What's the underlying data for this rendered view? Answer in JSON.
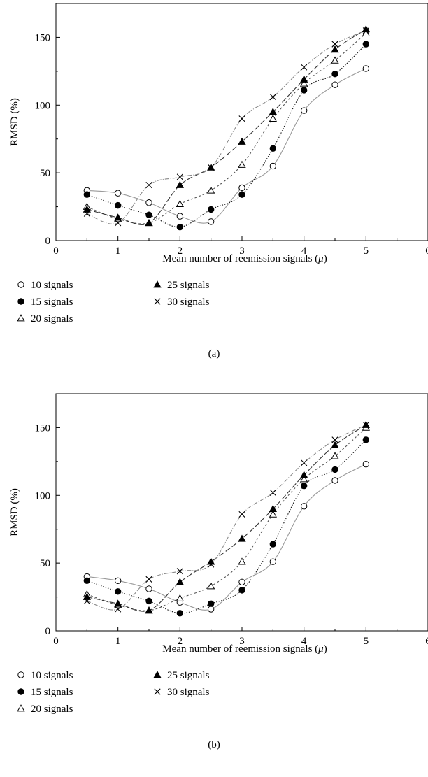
{
  "chart_data": [
    {
      "type": "scatter",
      "panel_label": "(a)",
      "xlabel": "Mean number of reemission signals (",
      "xlabel_symbol": "μ",
      "xlabel_suffix": ")",
      "ylabel": "RMSD (%)",
      "xlim": [
        0,
        6
      ],
      "ylim": [
        0,
        175
      ],
      "xticks": [
        0,
        1,
        2,
        3,
        4,
        5,
        6
      ],
      "yticks": [
        0,
        50,
        100,
        150
      ],
      "grid": false,
      "legend_position": "below",
      "x": [
        0.5,
        1,
        1.5,
        2,
        2.5,
        3,
        3.5,
        4,
        4.5,
        5
      ],
      "series": [
        {
          "name": "10 signals",
          "marker": "open-circle",
          "values": [
            37,
            35,
            28,
            18,
            14,
            39,
            55,
            96,
            115,
            127
          ]
        },
        {
          "name": "15 signals",
          "marker": "filled-circle",
          "values": [
            34,
            26,
            19,
            10,
            23,
            34,
            68,
            111,
            123,
            145
          ]
        },
        {
          "name": "20 signals",
          "marker": "open-triangle",
          "values": [
            25,
            16,
            13,
            27,
            37,
            56,
            90,
            116,
            133,
            153
          ]
        },
        {
          "name": "25 signals",
          "marker": "filled-triangle",
          "values": [
            23,
            17,
            13,
            41,
            54,
            73,
            95,
            119,
            141,
            156
          ]
        },
        {
          "name": "30 signals",
          "marker": "cross",
          "values": [
            20,
            13,
            41,
            47,
            54,
            90,
            106,
            128,
            145,
            155
          ]
        }
      ]
    },
    {
      "type": "scatter",
      "panel_label": "(b)",
      "xlabel": "Mean number of reemission signals (",
      "xlabel_symbol": "μ",
      "xlabel_suffix": ")",
      "ylabel": "RMSD (%)",
      "xlim": [
        0,
        6
      ],
      "ylim": [
        0,
        175
      ],
      "xticks": [
        0,
        1,
        2,
        3,
        4,
        5,
        6
      ],
      "yticks": [
        0,
        50,
        100,
        150
      ],
      "grid": false,
      "legend_position": "below",
      "x": [
        0.5,
        1,
        1.5,
        2,
        2.5,
        3,
        3.5,
        4,
        4.5,
        5
      ],
      "series": [
        {
          "name": "10 signals",
          "marker": "open-circle",
          "values": [
            40,
            37,
            31,
            21,
            16,
            36,
            51,
            92,
            111,
            123
          ]
        },
        {
          "name": "15 signals",
          "marker": "filled-circle",
          "values": [
            37,
            29,
            22,
            13,
            20,
            30,
            64,
            107,
            119,
            141
          ]
        },
        {
          "name": "20 signals",
          "marker": "open-triangle",
          "values": [
            27,
            19,
            15,
            24,
            33,
            51,
            86,
            112,
            129,
            150
          ]
        },
        {
          "name": "25 signals",
          "marker": "filled-triangle",
          "values": [
            25,
            20,
            15,
            36,
            51,
            68,
            90,
            115,
            137,
            152
          ]
        },
        {
          "name": "30 signals",
          "marker": "cross",
          "values": [
            22,
            16,
            38,
            44,
            49,
            86,
            102,
            124,
            141,
            152
          ]
        }
      ]
    }
  ]
}
